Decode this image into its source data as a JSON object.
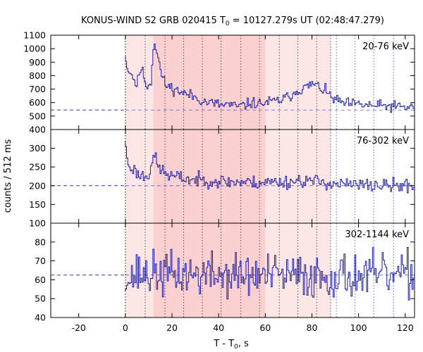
{
  "chart_data": {
    "type": "line",
    "title_prefix": "KONUS-WIND S2 GRB 020415 T",
    "title_sub": "0",
    "title_suffix": " = 10127.279s UT (02:48:47.279)",
    "xlabel_prefix": "T - T",
    "xlabel_sub": "0",
    "xlabel_suffix": ", s",
    "ylabel": "counts / 512 ms",
    "xlim": [
      -32,
      124
    ],
    "xticks": [
      -20,
      0,
      20,
      40,
      60,
      80,
      100,
      120
    ],
    "colors": {
      "series": "#1c1caa",
      "background_line": "#3333bb",
      "shade_light": "#fde6e6",
      "shade_dark": "#fbd0d0",
      "grid": "#444444"
    },
    "shaded_regions": [
      {
        "from": 0,
        "to": 88,
        "level": "light"
      },
      {
        "from": 12,
        "to": 60,
        "level": "dark"
      }
    ],
    "vlines_dotted_black": [
      0,
      8.5,
      17,
      25,
      33,
      41,
      49.5,
      57.5,
      66,
      74,
      82,
      88
    ],
    "vlines_dotted_blue": [
      90.5,
      98.5,
      106.5,
      115
    ],
    "panels": [
      {
        "band": "20-76 keV",
        "ylim": [
          400,
          1100
        ],
        "yticks": [
          400,
          500,
          600,
          700,
          800,
          900,
          1000,
          1100
        ],
        "background": 545,
        "pre_trigger": 545,
        "keypoints": [
          [
            0,
            945
          ],
          [
            0.5,
            870
          ],
          [
            1,
            840
          ],
          [
            1.5,
            820
          ],
          [
            2,
            835
          ],
          [
            3,
            800
          ],
          [
            4,
            760
          ],
          [
            5,
            720
          ],
          [
            6,
            830
          ],
          [
            7,
            850
          ],
          [
            8,
            790
          ],
          [
            9,
            730
          ],
          [
            10,
            720
          ],
          [
            11,
            760
          ],
          [
            12,
            1000
          ],
          [
            12.5,
            1050
          ],
          [
            13,
            1020
          ],
          [
            14,
            940
          ],
          [
            15,
            850
          ],
          [
            16,
            780
          ],
          [
            17,
            740
          ],
          [
            18,
            720
          ],
          [
            20,
            710
          ],
          [
            22,
            690
          ],
          [
            24,
            680
          ],
          [
            26,
            660
          ],
          [
            28,
            655
          ],
          [
            30,
            640
          ],
          [
            32,
            625
          ],
          [
            34,
            605
          ],
          [
            36,
            600
          ],
          [
            38,
            595
          ],
          [
            40,
            585
          ],
          [
            42,
            580
          ],
          [
            44,
            590
          ],
          [
            46,
            575
          ],
          [
            48,
            570
          ],
          [
            50,
            575
          ],
          [
            52,
            585
          ],
          [
            54,
            600
          ],
          [
            56,
            595
          ],
          [
            58,
            590
          ],
          [
            60,
            600
          ],
          [
            62,
            605
          ],
          [
            64,
            610
          ],
          [
            66,
            615
          ],
          [
            68,
            630
          ],
          [
            70,
            640
          ],
          [
            72,
            670
          ],
          [
            74,
            690
          ],
          [
            76,
            705
          ],
          [
            78,
            715
          ],
          [
            80,
            740
          ],
          [
            82,
            725
          ],
          [
            84,
            705
          ],
          [
            86,
            680
          ],
          [
            88,
            650
          ],
          [
            90,
            620
          ],
          [
            92,
            605
          ],
          [
            94,
            595
          ],
          [
            96,
            590
          ],
          [
            100,
            585
          ],
          [
            104,
            580
          ],
          [
            108,
            575
          ],
          [
            112,
            575
          ],
          [
            116,
            570
          ],
          [
            120,
            565
          ],
          [
            124,
            570
          ]
        ],
        "noise": 32,
        "seed": 11
      },
      {
        "band": "76-302 keV",
        "ylim": [
          100,
          350
        ],
        "yticks": [
          100,
          150,
          200,
          250,
          300
        ],
        "background": 200,
        "pre_trigger": 200,
        "keypoints": [
          [
            0,
            320
          ],
          [
            0.5,
            290
          ],
          [
            1,
            260
          ],
          [
            2,
            245
          ],
          [
            3,
            250
          ],
          [
            4,
            240
          ],
          [
            5,
            235
          ],
          [
            6,
            225
          ],
          [
            7,
            230
          ],
          [
            8,
            225
          ],
          [
            10,
            230
          ],
          [
            12,
            280
          ],
          [
            13,
            270
          ],
          [
            14,
            250
          ],
          [
            16,
            240
          ],
          [
            18,
            230
          ],
          [
            20,
            225
          ],
          [
            25,
            220
          ],
          [
            30,
            215
          ],
          [
            35,
            215
          ],
          [
            40,
            212
          ],
          [
            45,
            210
          ],
          [
            50,
            210
          ],
          [
            55,
            208
          ],
          [
            60,
            210
          ],
          [
            65,
            210
          ],
          [
            70,
            210
          ],
          [
            75,
            215
          ],
          [
            80,
            212
          ],
          [
            85,
            210
          ],
          [
            90,
            205
          ],
          [
            95,
            203
          ],
          [
            100,
            202
          ],
          [
            110,
            200
          ],
          [
            120,
            200
          ],
          [
            124,
            200
          ]
        ],
        "noise": 14,
        "seed": 23
      },
      {
        "band": "302-1144 keV",
        "ylim": [
          40,
          90
        ],
        "yticks": [
          40,
          50,
          60,
          70,
          80
        ],
        "background": 62.5,
        "pre_trigger": 62.5,
        "keypoints": [
          [
            0,
            54
          ],
          [
            1,
            58
          ],
          [
            3,
            62
          ],
          [
            5,
            63
          ],
          [
            10,
            63
          ],
          [
            20,
            63
          ],
          [
            40,
            62.5
          ],
          [
            60,
            62
          ],
          [
            80,
            62
          ],
          [
            100,
            62
          ],
          [
            124,
            62
          ]
        ],
        "noise": 9,
        "seed": 37
      }
    ]
  }
}
